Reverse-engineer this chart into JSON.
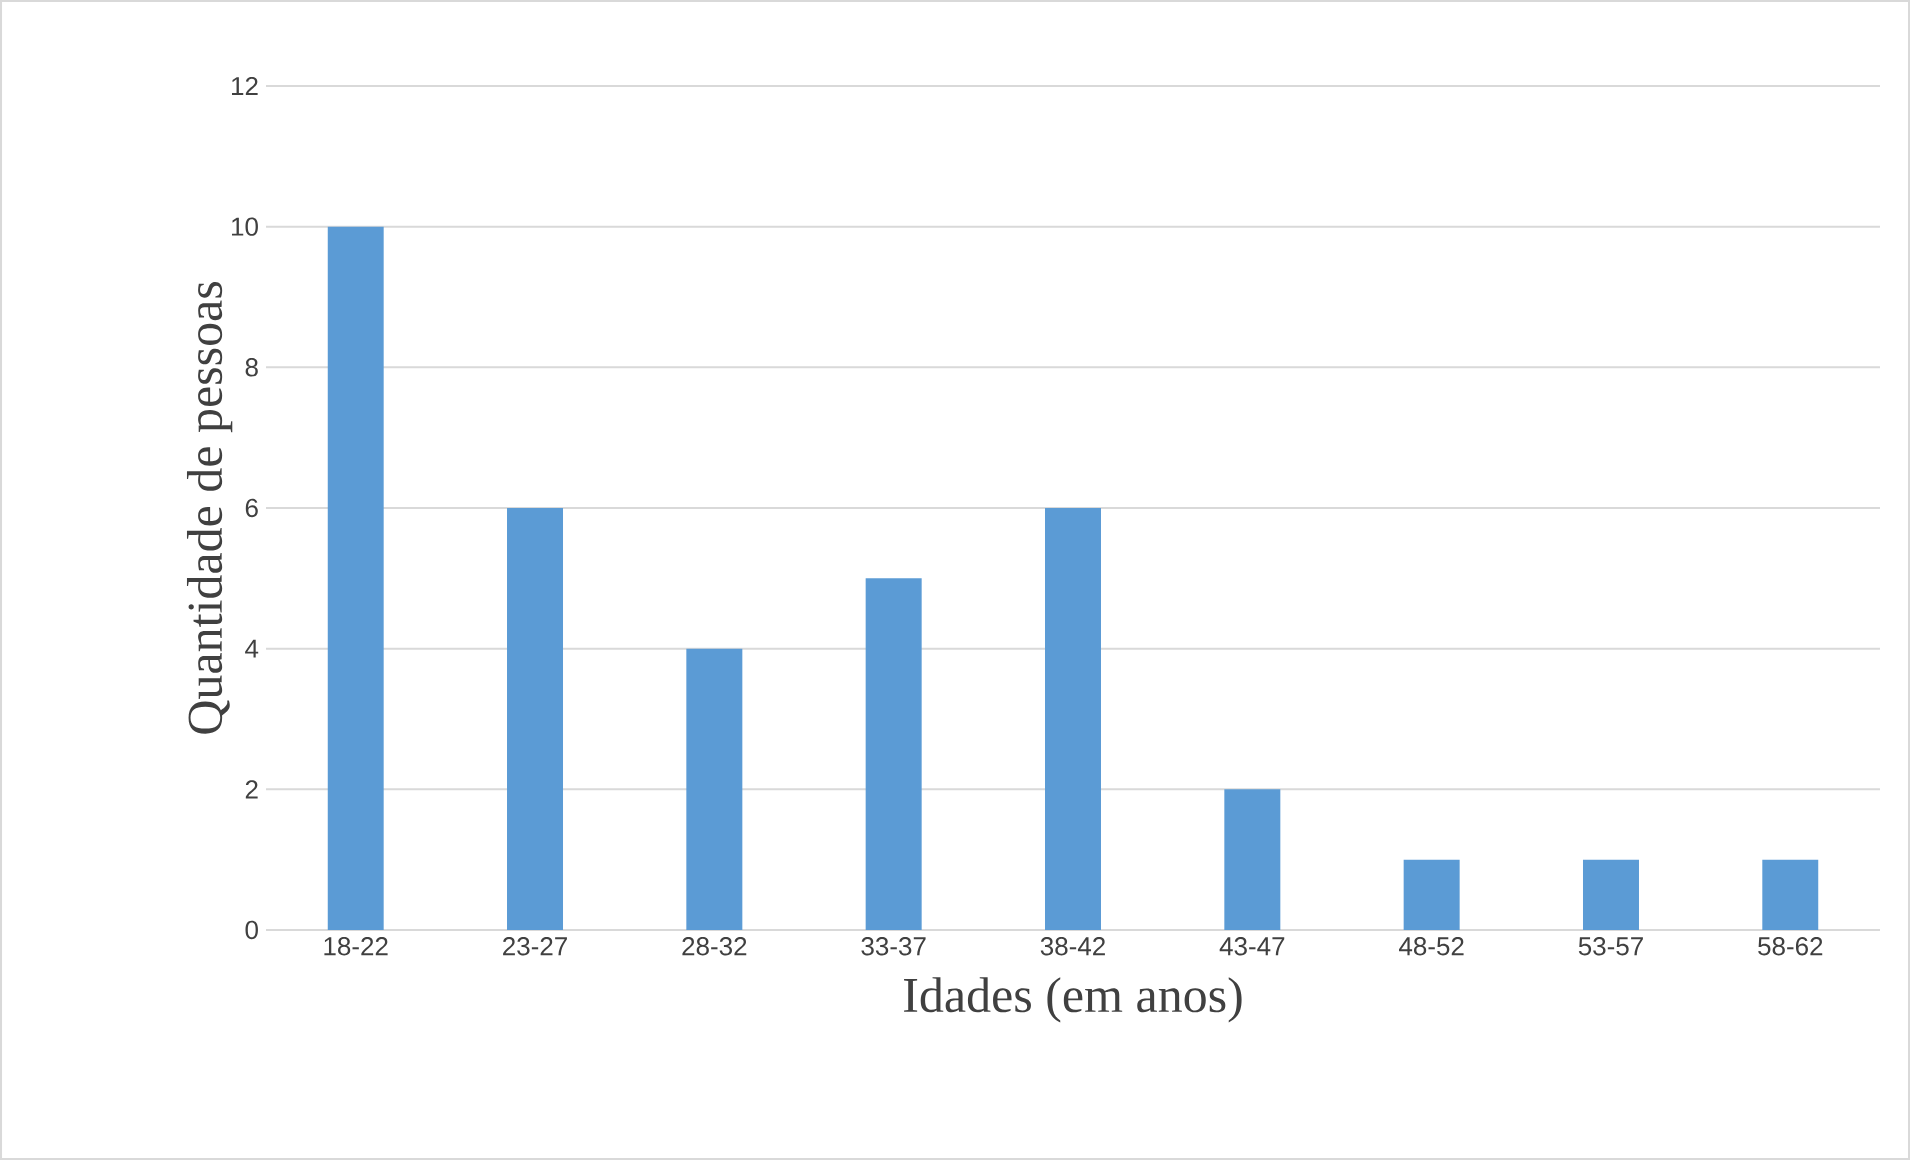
{
  "chart_data": {
    "type": "bar",
    "xlabel": "Idades (em anos)",
    "ylabel": "Quantidade de pessoas",
    "categories": [
      "18-22",
      "23-27",
      "28-32",
      "33-37",
      "38-42",
      "43-47",
      "48-52",
      "53-57",
      "58-62"
    ],
    "values": [
      10,
      6,
      4,
      5,
      6,
      2,
      1,
      1,
      1
    ],
    "color": "#5b9bd5",
    "ylim": [
      0,
      12
    ],
    "yticks": [
      0,
      2,
      4,
      6,
      8,
      10,
      12
    ],
    "grid": "y"
  }
}
